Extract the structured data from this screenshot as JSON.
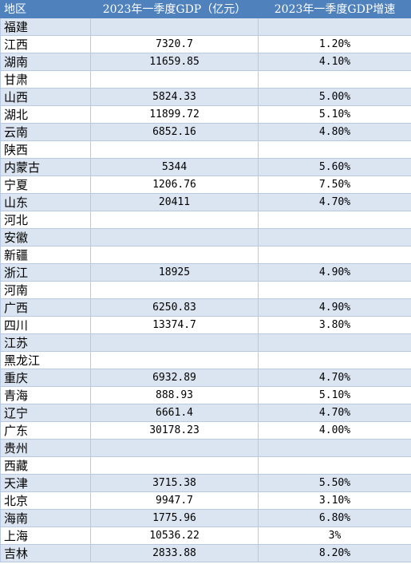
{
  "table": {
    "headers": [
      "地区",
      "2023年一季度GDP（亿元）",
      "2023年一季度GDP增速"
    ],
    "rows": [
      {
        "region": "福建",
        "gdp": "",
        "growth": ""
      },
      {
        "region": "江西",
        "gdp": "7320.7",
        "growth": "1.20%"
      },
      {
        "region": "湖南",
        "gdp": "11659.85",
        "growth": "4.10%"
      },
      {
        "region": "甘肃",
        "gdp": "",
        "growth": ""
      },
      {
        "region": "山西",
        "gdp": "5824.33",
        "growth": "5.00%"
      },
      {
        "region": "湖北",
        "gdp": "11899.72",
        "growth": "5.10%"
      },
      {
        "region": "云南",
        "gdp": "6852.16",
        "growth": "4.80%"
      },
      {
        "region": "陕西",
        "gdp": "",
        "growth": ""
      },
      {
        "region": "内蒙古",
        "gdp": "5344",
        "growth": "5.60%"
      },
      {
        "region": "宁夏",
        "gdp": "1206.76",
        "growth": "7.50%"
      },
      {
        "region": "山东",
        "gdp": "20411",
        "growth": "4.70%"
      },
      {
        "region": "河北",
        "gdp": "",
        "growth": ""
      },
      {
        "region": "安徽",
        "gdp": "",
        "growth": ""
      },
      {
        "region": "新疆",
        "gdp": "",
        "growth": ""
      },
      {
        "region": "浙江",
        "gdp": "18925",
        "growth": "4.90%"
      },
      {
        "region": "河南",
        "gdp": "",
        "growth": ""
      },
      {
        "region": "广西",
        "gdp": "6250.83",
        "growth": "4.90%"
      },
      {
        "region": "四川",
        "gdp": "13374.7",
        "growth": "3.80%"
      },
      {
        "region": "江苏",
        "gdp": "",
        "growth": ""
      },
      {
        "region": "黑龙江",
        "gdp": "",
        "growth": ""
      },
      {
        "region": "重庆",
        "gdp": "6932.89",
        "growth": "4.70%"
      },
      {
        "region": "青海",
        "gdp": "888.93",
        "growth": "5.10%"
      },
      {
        "region": "辽宁",
        "gdp": "6661.4",
        "growth": "4.70%"
      },
      {
        "region": "广东",
        "gdp": "30178.23",
        "growth": "4.00%"
      },
      {
        "region": "贵州",
        "gdp": "",
        "growth": ""
      },
      {
        "region": "西藏",
        "gdp": "",
        "growth": ""
      },
      {
        "region": "天津",
        "gdp": "3715.38",
        "growth": "5.50%"
      },
      {
        "region": "北京",
        "gdp": "9947.7",
        "growth": "3.10%"
      },
      {
        "region": "海南",
        "gdp": "1775.96",
        "growth": "6.80%"
      },
      {
        "region": "上海",
        "gdp": "10536.22",
        "growth": "3%"
      },
      {
        "region": "吉林",
        "gdp": "2833.88",
        "growth": "8.20%"
      }
    ]
  },
  "colors": {
    "header_bg": "#4f81bd",
    "header_text": "#ffffff",
    "band_row_bg": "#dbe5f1",
    "grid_line": "#b9c9e3"
  }
}
